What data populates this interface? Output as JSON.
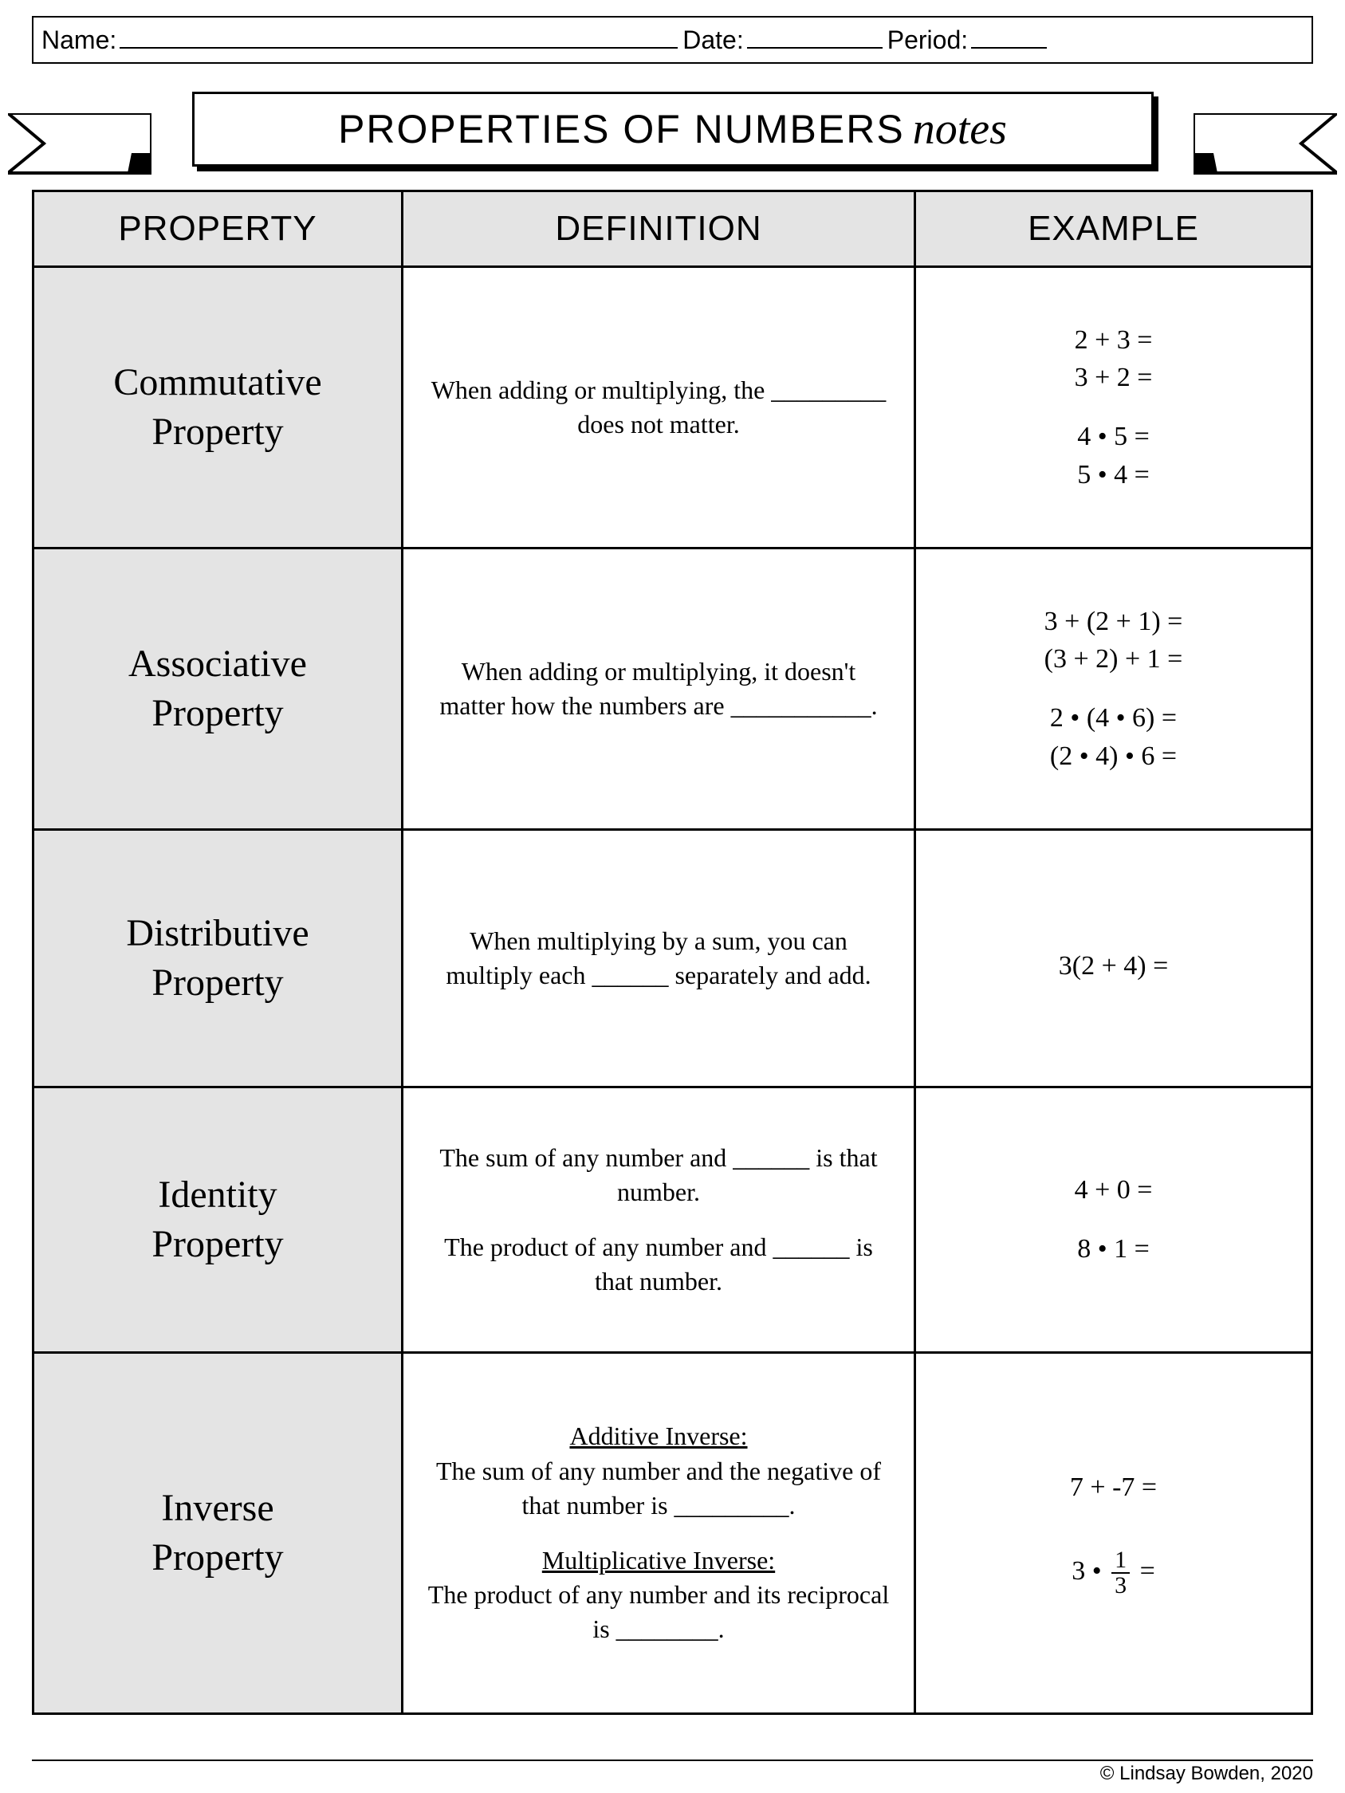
{
  "header": {
    "name_label": "Name:",
    "date_label": "Date:",
    "period_label": "Period:"
  },
  "title": {
    "main": "PROPERTIES OF NUMBERS",
    "script": "notes"
  },
  "columns": {
    "property": "PROPERTY",
    "definition": "DEFINITION",
    "example": "EXAMPLE"
  },
  "rows": [
    {
      "name": "Commutative\nProperty",
      "definition": "When adding or multiplying, the _________ does not matter.",
      "example_html": "2 + 3 =<br>3 + 2 =<span class='gap'></span>4 • 5 =<br>5 • 4 ="
    },
    {
      "name": "Associative\nProperty",
      "definition": "When adding or multiplying, it doesn't matter how the numbers are ___________.",
      "example_html": "3 + (2 + 1) =<br>(3 + 2) + 1 =<span class='gap'></span>2 • (4 • 6) =<br>(2 • 4) • 6 ="
    },
    {
      "name": "Distributive\nProperty",
      "definition": "When multiplying by a sum, you can multiply each ______ separately and add.",
      "example_html": "3(2 + 4) =",
      "example_valign": "top_pad"
    },
    {
      "name": "Identity\nProperty",
      "definition": "The sum of any number and ______ is that number.<span class='gap'></span>The product of any number and ______ is that number.",
      "example_html": "4 + 0 =<span class='gap'></span>8 • 1 ="
    },
    {
      "name": "Inverse\nProperty",
      "definition": "<span class='uline'>Additive Inverse:</span><br>The sum of any number and the negative of that number is _________.<span class='gap'></span><span class='uline'>Multiplicative Inverse:</span><br>The product of any number and its reciprocal is ________.",
      "example_html": "7 + -7 =<span class='gap'></span><span class='gap'></span>3 • <span class='fraction'><span class='num'>1</span><span class='den'>3</span></span> ="
    }
  ],
  "copyright": "© Lindsay Bowden, 2020",
  "colors": {
    "header_bg": "#e4e4e4",
    "border": "#000000",
    "background": "#ffffff"
  }
}
